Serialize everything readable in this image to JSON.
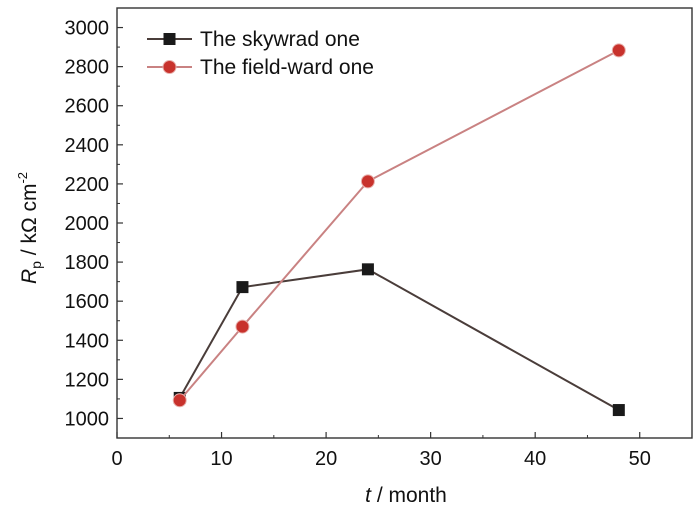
{
  "chart_data": {
    "type": "line",
    "title": "",
    "xlabel": {
      "italic": "t",
      "rest": " / month"
    },
    "ylabel": {
      "symbol": "R",
      "subscript": "p",
      "unit": " / kΩ cm",
      "exponent": "-2"
    },
    "xlim": [
      0,
      55
    ],
    "ylim": [
      900,
      3100
    ],
    "x_ticks": [
      0,
      10,
      20,
      30,
      40,
      50
    ],
    "y_ticks": [
      1000,
      1200,
      1400,
      1600,
      1800,
      2000,
      2200,
      2400,
      2600,
      2800,
      3000
    ],
    "grid": false,
    "legend_position": "top-left",
    "series": [
      {
        "name": "The skywrad one",
        "marker": "square",
        "color": "#4a3d3a",
        "marker_color": "#1a1a1a",
        "x": [
          6,
          12,
          24,
          48
        ],
        "y": [
          1105,
          1672,
          1763,
          1043
        ]
      },
      {
        "name": "The field-ward one",
        "marker": "circle",
        "color": "#c98282",
        "marker_color": "#c8322c",
        "x": [
          6,
          12,
          24,
          48
        ],
        "y": [
          1093,
          1470,
          2213,
          2883
        ]
      }
    ]
  }
}
